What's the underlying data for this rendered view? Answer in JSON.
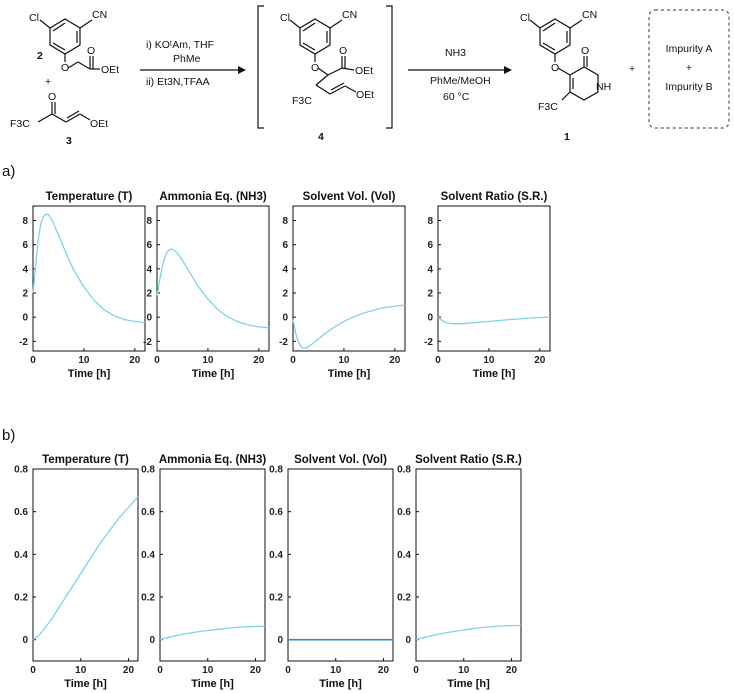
{
  "scheme": {
    "compound_2": "2",
    "compound_3": "3",
    "compound_4": "4",
    "compound_1": "1",
    "plus_sign": "+",
    "cl": "Cl",
    "cn": "CN",
    "oet": "OEt",
    "o": "O",
    "nh": "NH",
    "f3c": "F3C",
    "step1_line1": "i) KOᵗAm, THF",
    "step1_line2": "PhMe",
    "step1_line3": "ii) Et3N,TFAA",
    "step2_line1": "NH3",
    "step2_line2": "PhMe/MeOH",
    "step2_line3": "60 °C",
    "impurity_a": "Impurity A",
    "impurity_plus": "+",
    "impurity_b": "Impurity B"
  },
  "panels": {
    "a_label": "a)",
    "b_label": "b)"
  },
  "chart_data": [
    {
      "panel": "a",
      "type": "line",
      "title": "Temperature (T)",
      "xlabel": "Time [h]",
      "xlim": [
        0,
        22
      ],
      "ylim": [
        -2.8,
        9.2
      ],
      "xticks": [
        0,
        10,
        20
      ],
      "yticks": [
        -2,
        0,
        2,
        4,
        6,
        8
      ],
      "series": [
        {
          "color": "#7fd3ea",
          "x": [
            0,
            0.5,
            1,
            1.5,
            2,
            2.5,
            3,
            3.5,
            4,
            5,
            6,
            7,
            8,
            10,
            12,
            14,
            16,
            18,
            20,
            22
          ],
          "y": [
            2.0,
            4.2,
            6.3,
            7.7,
            8.3,
            8.5,
            8.5,
            8.2,
            7.8,
            6.8,
            5.8,
            4.8,
            3.9,
            2.5,
            1.4,
            0.6,
            0.1,
            -0.2,
            -0.35,
            -0.45
          ]
        }
      ]
    },
    {
      "panel": "a",
      "type": "line",
      "title": "Ammonia Eq. (NH3)",
      "xlabel": "Time [h]",
      "xlim": [
        0,
        22
      ],
      "ylim": [
        -2.8,
        9.2
      ],
      "xticks": [
        0,
        10,
        20
      ],
      "yticks": [
        -2,
        0,
        2,
        4,
        6,
        8
      ],
      "series": [
        {
          "color": "#7fd3ea",
          "x": [
            0,
            0.5,
            1,
            1.5,
            2,
            2.5,
            3,
            3.5,
            4,
            5,
            6,
            7,
            8,
            10,
            12,
            14,
            16,
            18,
            20,
            22
          ],
          "y": [
            1.8,
            3.0,
            4.1,
            4.9,
            5.4,
            5.6,
            5.65,
            5.5,
            5.3,
            4.7,
            4.0,
            3.3,
            2.6,
            1.5,
            0.6,
            0.0,
            -0.4,
            -0.65,
            -0.8,
            -0.9
          ]
        }
      ]
    },
    {
      "panel": "a",
      "type": "line",
      "title": "Solvent Vol. (Vol)",
      "xlabel": "Time [h]",
      "xlim": [
        0,
        22
      ],
      "ylim": [
        -2.8,
        9.2
      ],
      "xticks": [
        0,
        10,
        20
      ],
      "yticks": [
        -2,
        0,
        2,
        4,
        6,
        8
      ],
      "series": [
        {
          "color": "#7fd3ea",
          "x": [
            0,
            0.5,
            1,
            1.5,
            2,
            2.5,
            3,
            4,
            5,
            6,
            8,
            10,
            12,
            14,
            16,
            18,
            20,
            22
          ],
          "y": [
            -0.2,
            -1.3,
            -2.0,
            -2.4,
            -2.55,
            -2.55,
            -2.45,
            -2.15,
            -1.8,
            -1.45,
            -0.85,
            -0.35,
            0.05,
            0.35,
            0.6,
            0.8,
            0.9,
            1.0
          ]
        }
      ]
    },
    {
      "panel": "a",
      "type": "line",
      "title": "Solvent Ratio (S.R.)",
      "xlabel": "Time [h]",
      "xlim": [
        0,
        22
      ],
      "ylim": [
        -2.8,
        9.2
      ],
      "xticks": [
        0,
        10,
        20
      ],
      "yticks": [
        -2,
        0,
        2,
        4,
        6,
        8
      ],
      "series": [
        {
          "color": "#7fd3ea",
          "x": [
            0,
            1,
            2,
            3,
            4,
            5,
            6,
            8,
            10,
            12,
            14,
            16,
            18,
            20,
            22
          ],
          "y": [
            0.0,
            -0.35,
            -0.5,
            -0.55,
            -0.55,
            -0.53,
            -0.5,
            -0.43,
            -0.35,
            -0.28,
            -0.2,
            -0.14,
            -0.08,
            -0.03,
            0.0
          ]
        }
      ]
    },
    {
      "panel": "b",
      "type": "line",
      "title": "Temperature (T)",
      "xlabel": "Time [h]",
      "xlim": [
        0,
        22
      ],
      "ylim": [
        -0.1,
        0.8
      ],
      "xticks": [
        0,
        10,
        20
      ],
      "yticks": [
        0,
        0.2,
        0.4,
        0.6,
        0.8
      ],
      "series": [
        {
          "color": "#7fd3ea",
          "x": [
            0,
            1,
            2,
            4,
            6,
            8,
            10,
            12,
            14,
            16,
            18,
            20,
            22
          ],
          "y": [
            0.0,
            0.015,
            0.04,
            0.1,
            0.17,
            0.24,
            0.31,
            0.38,
            0.45,
            0.51,
            0.57,
            0.62,
            0.67
          ]
        }
      ]
    },
    {
      "panel": "b",
      "type": "line",
      "title": "Ammonia Eq. (NH3)",
      "xlabel": "Time [h]",
      "xlim": [
        0,
        22
      ],
      "ylim": [
        -0.1,
        0.8
      ],
      "xticks": [
        0,
        10,
        20
      ],
      "yticks": [
        0,
        0.2,
        0.4,
        0.6,
        0.8
      ],
      "series": [
        {
          "color": "#7fd3ea",
          "x": [
            0,
            2,
            4,
            6,
            8,
            10,
            12,
            14,
            16,
            18,
            20,
            22
          ],
          "y": [
            0.0,
            0.012,
            0.022,
            0.03,
            0.037,
            0.043,
            0.048,
            0.053,
            0.057,
            0.06,
            0.062,
            0.063
          ]
        }
      ]
    },
    {
      "panel": "b",
      "type": "line",
      "title": "Solvent Vol. (Vol)",
      "xlabel": "Time [h]",
      "xlim": [
        0,
        22
      ],
      "ylim": [
        -0.1,
        0.8
      ],
      "xticks": [
        0,
        10,
        20
      ],
      "yticks": [
        0,
        0.2,
        0.4,
        0.6,
        0.8
      ],
      "series": [
        {
          "color": "#2e8ad8",
          "x": [
            0,
            22
          ],
          "y": [
            0.0,
            0.0
          ]
        }
      ]
    },
    {
      "panel": "b",
      "type": "line",
      "title": "Solvent Ratio (S.R.)",
      "xlabel": "Time [h]",
      "xlim": [
        0,
        22
      ],
      "ylim": [
        -0.1,
        0.8
      ],
      "xticks": [
        0,
        10,
        20
      ],
      "yticks": [
        0,
        0.2,
        0.4,
        0.6,
        0.8
      ],
      "series": [
        {
          "color": "#7fd3ea",
          "x": [
            0,
            2,
            4,
            6,
            8,
            10,
            12,
            14,
            16,
            18,
            20,
            22
          ],
          "y": [
            0.0,
            0.012,
            0.022,
            0.031,
            0.039,
            0.046,
            0.052,
            0.057,
            0.061,
            0.064,
            0.066,
            0.067
          ]
        }
      ]
    }
  ]
}
